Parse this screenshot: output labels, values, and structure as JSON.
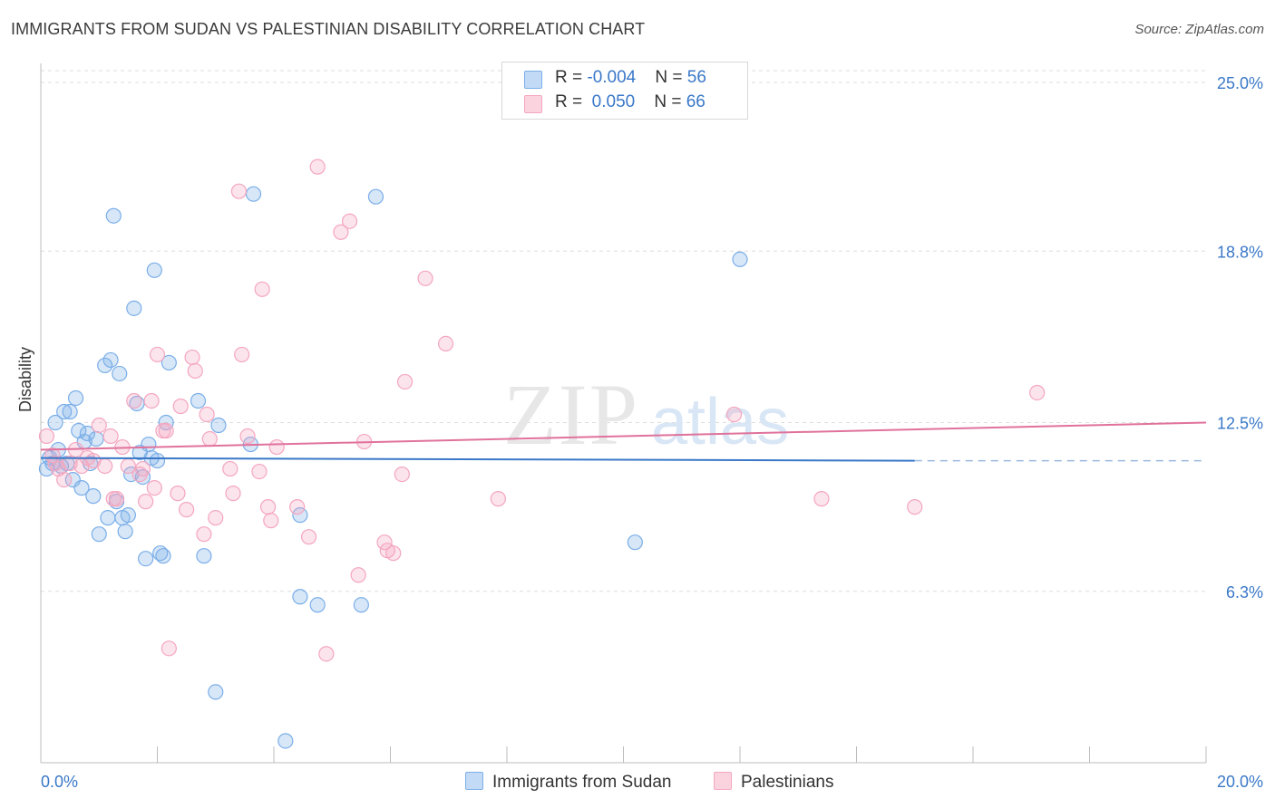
{
  "title": "IMMIGRANTS FROM SUDAN VS PALESTINIAN DISABILITY CORRELATION CHART",
  "source": "Source: ZipAtlas.com",
  "watermark": {
    "zip": "ZIP",
    "atlas": "atlas"
  },
  "legend": {
    "rows": [
      {
        "r_label": "R = ",
        "r_value": "-0.004",
        "n_label": "N = ",
        "n_value": "56",
        "color": "#7aaee8"
      },
      {
        "r_label": "R = ",
        "r_value": " 0.050",
        "n_label": "N = ",
        "n_value": "66",
        "color": "#f4a6bf"
      }
    ]
  },
  "bottom_legend": {
    "series1": "Immigrants from Sudan",
    "series2": "Palestinians"
  },
  "chart_data": {
    "type": "scatter",
    "title": "IMMIGRANTS FROM SUDAN VS PALESTINIAN DISABILITY CORRELATION CHART",
    "xlabel": "",
    "ylabel": "Disability",
    "xlim": [
      0,
      20
    ],
    "ylim": [
      0,
      25.7
    ],
    "x_tick_labels": [
      "0.0%",
      "20.0%"
    ],
    "y_ticks": [
      6.3,
      12.5,
      18.8,
      25.0
    ],
    "y_tick_labels": [
      "6.3%",
      "12.5%",
      "18.8%",
      "25.0%"
    ],
    "grid": "horizontal dashed",
    "series": [
      {
        "name": "Immigrants from Sudan",
        "color": "#7aaee8",
        "trend": {
          "x": [
            0,
            15
          ],
          "y": [
            11.2,
            11.1
          ],
          "dash_to": 20
        },
        "points": [
          [
            0.1,
            10.8
          ],
          [
            0.2,
            11.0
          ],
          [
            0.25,
            12.5
          ],
          [
            0.3,
            11.5
          ],
          [
            0.35,
            10.9
          ],
          [
            0.4,
            12.9
          ],
          [
            0.45,
            11.0
          ],
          [
            0.5,
            12.9
          ],
          [
            0.55,
            10.4
          ],
          [
            0.6,
            13.4
          ],
          [
            0.65,
            12.2
          ],
          [
            0.7,
            10.1
          ],
          [
            0.75,
            11.8
          ],
          [
            0.8,
            12.1
          ],
          [
            0.85,
            11.0
          ],
          [
            0.9,
            9.8
          ],
          [
            0.95,
            11.9
          ],
          [
            1.0,
            8.4
          ],
          [
            1.1,
            14.6
          ],
          [
            1.15,
            9.0
          ],
          [
            1.2,
            14.8
          ],
          [
            1.25,
            20.1
          ],
          [
            1.3,
            9.6
          ],
          [
            1.35,
            14.3
          ],
          [
            1.4,
            9.0
          ],
          [
            1.45,
            8.5
          ],
          [
            1.5,
            9.1
          ],
          [
            1.55,
            10.6
          ],
          [
            1.6,
            16.7
          ],
          [
            1.65,
            13.2
          ],
          [
            1.7,
            11.4
          ],
          [
            1.75,
            10.5
          ],
          [
            1.8,
            7.5
          ],
          [
            1.85,
            11.7
          ],
          [
            1.9,
            11.2
          ],
          [
            1.95,
            18.1
          ],
          [
            2.0,
            11.1
          ],
          [
            2.05,
            7.7
          ],
          [
            2.1,
            7.6
          ],
          [
            2.15,
            12.5
          ],
          [
            2.2,
            14.7
          ],
          [
            2.7,
            13.3
          ],
          [
            2.8,
            7.6
          ],
          [
            3.0,
            2.6
          ],
          [
            3.05,
            12.4
          ],
          [
            3.6,
            11.7
          ],
          [
            3.65,
            20.9
          ],
          [
            4.2,
            0.8
          ],
          [
            4.45,
            9.1
          ],
          [
            4.45,
            6.1
          ],
          [
            4.75,
            5.8
          ],
          [
            5.5,
            5.8
          ],
          [
            5.75,
            20.8
          ],
          [
            10.2,
            8.1
          ],
          [
            12.0,
            18.5
          ],
          [
            0.15,
            11.2
          ]
        ]
      },
      {
        "name": "Palestinians",
        "color": "#f4a6bf",
        "trend": {
          "x": [
            0,
            20
          ],
          "y": [
            11.5,
            12.5
          ]
        },
        "points": [
          [
            0.1,
            12.0
          ],
          [
            0.2,
            11.3
          ],
          [
            0.3,
            10.8
          ],
          [
            0.4,
            10.4
          ],
          [
            0.5,
            11.0
          ],
          [
            0.6,
            11.5
          ],
          [
            0.7,
            10.9
          ],
          [
            0.8,
            11.2
          ],
          [
            0.9,
            11.1
          ],
          [
            1.0,
            12.4
          ],
          [
            1.1,
            10.9
          ],
          [
            1.2,
            12.0
          ],
          [
            1.3,
            9.7
          ],
          [
            1.4,
            11.6
          ],
          [
            1.5,
            10.9
          ],
          [
            1.6,
            13.3
          ],
          [
            1.7,
            10.6
          ],
          [
            1.75,
            10.8
          ],
          [
            1.8,
            9.6
          ],
          [
            1.9,
            13.3
          ],
          [
            1.95,
            10.1
          ],
          [
            2.0,
            15.0
          ],
          [
            2.1,
            12.2
          ],
          [
            2.15,
            12.2
          ],
          [
            2.2,
            4.2
          ],
          [
            2.35,
            9.9
          ],
          [
            2.4,
            13.1
          ],
          [
            2.5,
            9.3
          ],
          [
            2.6,
            14.9
          ],
          [
            2.65,
            14.4
          ],
          [
            2.8,
            8.4
          ],
          [
            2.85,
            12.8
          ],
          [
            2.9,
            11.9
          ],
          [
            3.0,
            9.0
          ],
          [
            3.25,
            10.8
          ],
          [
            3.3,
            9.9
          ],
          [
            3.4,
            21.0
          ],
          [
            3.45,
            15.0
          ],
          [
            3.55,
            12.0
          ],
          [
            3.75,
            10.7
          ],
          [
            3.8,
            17.4
          ],
          [
            3.9,
            9.4
          ],
          [
            3.95,
            8.9
          ],
          [
            4.05,
            11.6
          ],
          [
            4.4,
            9.4
          ],
          [
            4.6,
            8.3
          ],
          [
            4.75,
            21.9
          ],
          [
            4.9,
            4.0
          ],
          [
            5.15,
            19.5
          ],
          [
            5.3,
            19.9
          ],
          [
            5.45,
            6.9
          ],
          [
            5.55,
            11.8
          ],
          [
            5.9,
            8.1
          ],
          [
            5.95,
            7.8
          ],
          [
            6.05,
            7.7
          ],
          [
            6.25,
            14.0
          ],
          [
            6.2,
            10.6
          ],
          [
            6.6,
            17.8
          ],
          [
            6.95,
            15.4
          ],
          [
            7.85,
            9.7
          ],
          [
            11.9,
            12.8
          ],
          [
            13.4,
            9.7
          ],
          [
            15.0,
            9.4
          ],
          [
            17.1,
            13.6
          ],
          [
            0.25,
            11.0
          ],
          [
            1.25,
            9.7
          ]
        ]
      }
    ]
  }
}
